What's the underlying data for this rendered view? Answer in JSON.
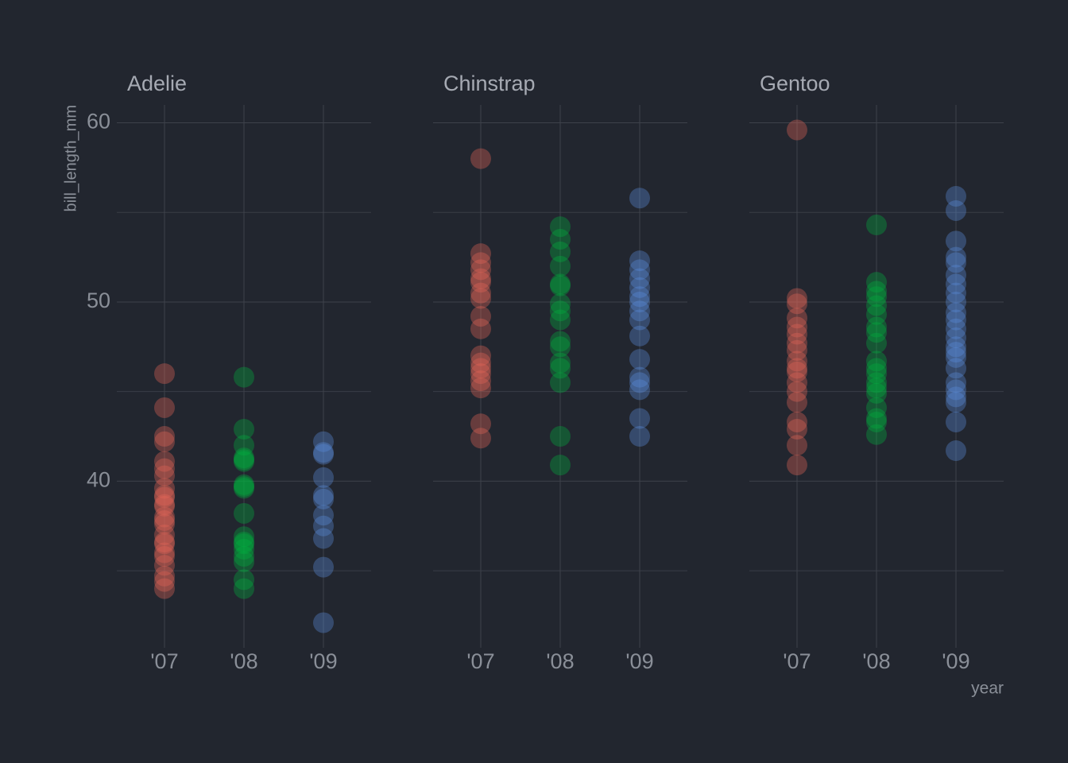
{
  "chart_data": [
    {
      "type": "scatter",
      "title": "Adelie",
      "ylabel": "bill_length_mm",
      "categories": [
        "'07",
        "'08",
        "'09"
      ],
      "ylim": [
        30.7,
        61
      ],
      "yticks": [
        40,
        50,
        60
      ],
      "minor_yticks": [
        35,
        45,
        55
      ],
      "grid": true,
      "series": [
        {
          "color": "#e8675a",
          "values": [
            46.0,
            44.1,
            42.5,
            42.2,
            41.1,
            40.7,
            40.3,
            39.6,
            39.2,
            39.1,
            38.7,
            38.6,
            38.0,
            37.8,
            37.6,
            37.0,
            36.6,
            36.5,
            36.0,
            35.8,
            35.3,
            34.7,
            34.4,
            34.0
          ]
        },
        {
          "color": "#00b140",
          "values": [
            45.8,
            42.9,
            42.0,
            41.3,
            41.2,
            41.1,
            39.8,
            39.7,
            39.6,
            38.2,
            36.9,
            36.6,
            36.5,
            36.2,
            35.8,
            35.5,
            34.5,
            34.0
          ]
        },
        {
          "color": "#5b8fe0",
          "values": [
            42.2,
            41.6,
            41.5,
            40.2,
            39.2,
            39.0,
            38.1,
            37.5,
            36.8,
            35.2,
            32.1
          ]
        }
      ]
    },
    {
      "type": "scatter",
      "title": "Chinstrap",
      "categories": [
        "'07",
        "'08",
        "'09"
      ],
      "ylim": [
        30.7,
        61
      ],
      "yticks": [
        40,
        50,
        60
      ],
      "minor_yticks": [
        35,
        45,
        55
      ],
      "grid": true,
      "series": [
        {
          "color": "#e8675a",
          "values": [
            58.0,
            52.7,
            52.2,
            51.8,
            51.3,
            51.1,
            50.5,
            50.2,
            49.2,
            48.5,
            47.0,
            46.6,
            46.3,
            46.0,
            45.6,
            45.2,
            43.2,
            42.4
          ]
        },
        {
          "color": "#00b140",
          "values": [
            54.2,
            53.5,
            52.8,
            52.0,
            51.0,
            50.9,
            49.9,
            49.5,
            49.0,
            47.8,
            47.5,
            46.6,
            46.3,
            45.5,
            42.5,
            40.9
          ]
        },
        {
          "color": "#5b8fe0",
          "values": [
            55.8,
            52.3,
            51.8,
            51.3,
            50.8,
            50.3,
            50.0,
            49.5,
            49.0,
            48.1,
            46.8,
            45.8,
            45.5,
            45.1,
            43.5,
            42.5
          ]
        }
      ]
    },
    {
      "type": "scatter",
      "title": "Gentoo",
      "xlabel": "year",
      "categories": [
        "'07",
        "'08",
        "'09"
      ],
      "ylim": [
        30.7,
        61
      ],
      "yticks": [
        40,
        50,
        60
      ],
      "minor_yticks": [
        35,
        45,
        55
      ],
      "grid": true,
      "series": [
        {
          "color": "#e8675a",
          "values": [
            59.6,
            50.2,
            49.9,
            49.1,
            48.6,
            48.2,
            47.7,
            47.3,
            46.7,
            46.3,
            46.1,
            45.5,
            45.0,
            44.4,
            43.3,
            42.9,
            42.0,
            40.9
          ]
        },
        {
          "color": "#00b140",
          "values": [
            54.3,
            51.1,
            50.6,
            50.3,
            49.8,
            49.3,
            48.6,
            48.3,
            47.7,
            46.7,
            46.3,
            46.0,
            45.5,
            45.2,
            44.9,
            44.1,
            43.5,
            43.3,
            42.6
          ]
        },
        {
          "color": "#5b8fe0",
          "values": [
            55.9,
            55.1,
            53.4,
            52.5,
            52.2,
            51.5,
            51.0,
            50.5,
            50.0,
            49.4,
            49.0,
            48.5,
            48.0,
            47.5,
            47.2,
            46.9,
            46.3,
            45.5,
            45.1,
            44.7,
            44.4,
            43.3,
            41.7
          ]
        }
      ]
    }
  ]
}
